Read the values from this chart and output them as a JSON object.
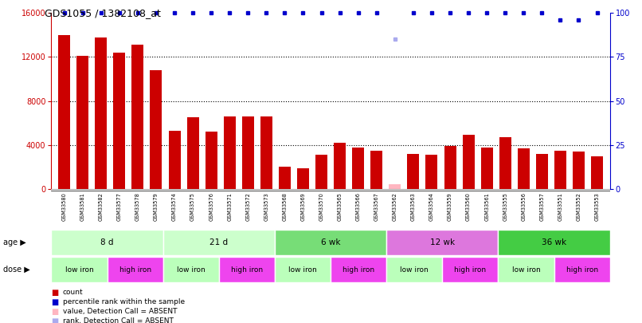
{
  "title": "GDS1055 / 1382108_at",
  "samples": [
    "GSM33580",
    "GSM33581",
    "GSM33582",
    "GSM33577",
    "GSM33578",
    "GSM33579",
    "GSM33574",
    "GSM33575",
    "GSM33576",
    "GSM33571",
    "GSM33572",
    "GSM33573",
    "GSM33568",
    "GSM33569",
    "GSM33570",
    "GSM33565",
    "GSM33566",
    "GSM33567",
    "GSM33562",
    "GSM33563",
    "GSM33564",
    "GSM33559",
    "GSM33560",
    "GSM33561",
    "GSM33555",
    "GSM33556",
    "GSM33557",
    "GSM33551",
    "GSM33552",
    "GSM33553"
  ],
  "counts": [
    14000,
    12100,
    13800,
    12400,
    13100,
    10800,
    5300,
    6500,
    5200,
    6600,
    6600,
    6600,
    2000,
    1900,
    3100,
    4200,
    3800,
    3500,
    400,
    3200,
    3100,
    3900,
    4900,
    3800,
    4700,
    3700,
    3200,
    3500,
    3400,
    3000
  ],
  "absent_count_idx": 18,
  "absent_count_color": "#FFB6C1",
  "bar_color": "#CC0000",
  "percentile_ranks": [
    100,
    100,
    100,
    100,
    100,
    100,
    100,
    100,
    100,
    100,
    100,
    100,
    100,
    100,
    100,
    100,
    100,
    100,
    85,
    100,
    100,
    100,
    100,
    100,
    100,
    100,
    100,
    96,
    96,
    100
  ],
  "absent_rank_idx": 18,
  "absent_rank_color": "#AAAAEE",
  "rank_color": "#0000CC",
  "ylim_left": [
    0,
    16000
  ],
  "ylim_right": [
    0,
    100
  ],
  "yticks_left": [
    0,
    4000,
    8000,
    12000,
    16000
  ],
  "yticks_right": [
    0,
    25,
    50,
    75,
    100
  ],
  "age_groups": [
    {
      "label": "8 d",
      "start": 0,
      "end": 6,
      "color": "#CCFFCC"
    },
    {
      "label": "21 d",
      "start": 6,
      "end": 12,
      "color": "#CCFFCC"
    },
    {
      "label": "6 wk",
      "start": 12,
      "end": 18,
      "color": "#77DD77"
    },
    {
      "label": "12 wk",
      "start": 18,
      "end": 24,
      "color": "#DD77DD"
    },
    {
      "label": "36 wk",
      "start": 24,
      "end": 30,
      "color": "#44CC44"
    }
  ],
  "dose_groups": [
    {
      "label": "low iron",
      "start": 0,
      "end": 3,
      "color": "#BBFFBB"
    },
    {
      "label": "high iron",
      "start": 3,
      "end": 6,
      "color": "#EE44EE"
    },
    {
      "label": "low iron",
      "start": 6,
      "end": 9,
      "color": "#BBFFBB"
    },
    {
      "label": "high iron",
      "start": 9,
      "end": 12,
      "color": "#EE44EE"
    },
    {
      "label": "low iron",
      "start": 12,
      "end": 15,
      "color": "#BBFFBB"
    },
    {
      "label": "high iron",
      "start": 15,
      "end": 18,
      "color": "#EE44EE"
    },
    {
      "label": "low iron",
      "start": 18,
      "end": 21,
      "color": "#BBFFBB"
    },
    {
      "label": "high iron",
      "start": 21,
      "end": 24,
      "color": "#EE44EE"
    },
    {
      "label": "low iron",
      "start": 24,
      "end": 27,
      "color": "#BBFFBB"
    },
    {
      "label": "high iron",
      "start": 27,
      "end": 30,
      "color": "#EE44EE"
    }
  ],
  "background_color": "#FFFFFF",
  "left_axis_color": "#CC0000",
  "right_axis_color": "#0000CC",
  "xlabel_bg": "#DDDDDD"
}
